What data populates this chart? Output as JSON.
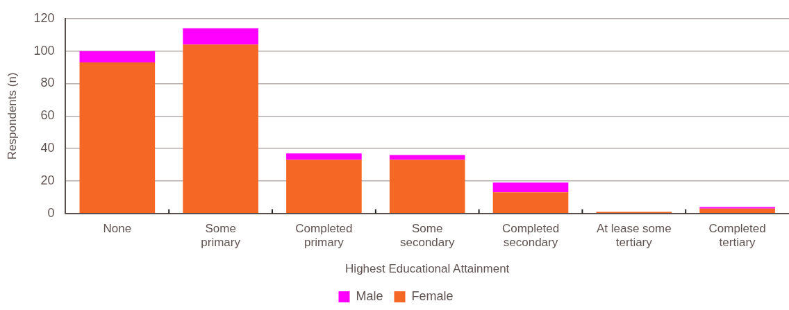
{
  "chart_data": {
    "type": "bar",
    "stacked": true,
    "xlabel": "Highest Educational Attainment",
    "ylabel": "Respondents (n)",
    "categories": [
      "None",
      "Some primary",
      "Completed primary",
      "Some secondary",
      "Completed secondary",
      "At lease some tertiary",
      "Completed tertiary"
    ],
    "series": [
      {
        "name": "Female",
        "color": "#f46724",
        "values": [
          93,
          104,
          33,
          33,
          13,
          1,
          3
        ]
      },
      {
        "name": "Male",
        "color": "#ff00ff",
        "values": [
          7,
          10,
          4,
          3,
          6,
          0,
          1
        ]
      }
    ],
    "ylim": [
      0,
      120
    ],
    "yticks": [
      0,
      20,
      40,
      60,
      80,
      100,
      120
    ],
    "grid": "y",
    "legend": "bottom"
  }
}
